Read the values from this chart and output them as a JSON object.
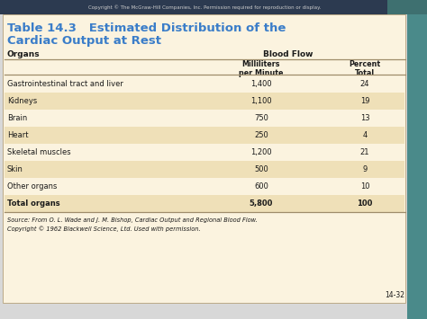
{
  "copyright_top": "Copyright © The McGraw-Hill Companies, Inc. Permission required for reproduction or display.",
  "title_line1": "Table 14.3   Estimated Distribution of the",
  "title_line2": "Cardiac Output at Rest",
  "title_color": "#3A7DC9",
  "col_header1": "Organs",
  "col_header2": "Blood Flow",
  "col_subheader1": "Milliliters\nper Minute",
  "col_subheader2": "Percent\nTotal",
  "rows": [
    [
      "Gastrointestinal tract and liver",
      "1,400",
      "24",
      false
    ],
    [
      "Kidneys",
      "1,100",
      "19",
      true
    ],
    [
      "Brain",
      "750",
      "13",
      false
    ],
    [
      "Heart",
      "250",
      "4",
      true
    ],
    [
      "Skeletal muscles",
      "1,200",
      "21",
      false
    ],
    [
      "Skin",
      "500",
      "9",
      true
    ],
    [
      "Other organs",
      "600",
      "10",
      false
    ],
    [
      "Total organs",
      "5,800",
      "100",
      true
    ]
  ],
  "table_bg": "#FBF3DF",
  "stripe_color": "#EFE0B8",
  "source_text1": "Source: From O. L. Wade and J. M. Bishop, Cardiac Output and Regional Blood Flow.",
  "source_text2": "Copyright © 1962 Blackwell Science, Ltd. Used with permission.",
  "footer_text": "14-32",
  "border_color": "#9E8C6A",
  "text_color": "#1A1A1A",
  "top_bar_color": "#2C3A50",
  "top_bar_color2": "#3E7070",
  "right_bar_color": "#4A8A8A",
  "fig_bg": "#D8D8D8",
  "copy_bg": "#3C3C4E"
}
